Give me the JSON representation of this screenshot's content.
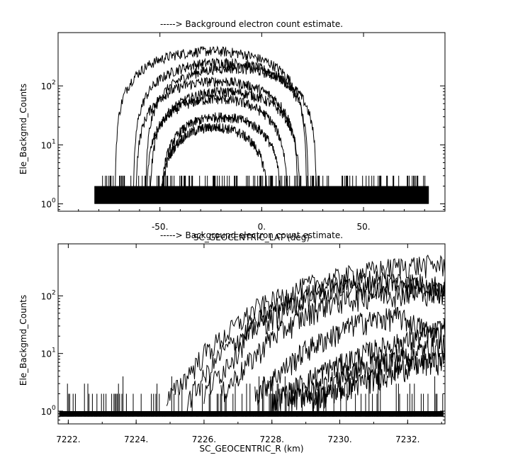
{
  "chart_data": [
    {
      "type": "line",
      "title": "-----> Background electron count estimate.",
      "xlabel": "SC_GEOCENTRIC_LAT (deg)",
      "ylabel": "Ele_Backgmd_Counts",
      "y_scale": "log",
      "xlim": [
        -100,
        90
      ],
      "ylim": [
        0.75,
        800
      ],
      "x_ticks": [
        -50,
        0,
        50
      ],
      "x_tick_labels": [
        "-50.",
        "0.",
        "50."
      ],
      "y_ticks": [
        1,
        10,
        100
      ],
      "y_tick_labels": [
        "10",
        "10",
        "10"
      ],
      "y_tick_exponents": [
        "0",
        "1",
        "2"
      ],
      "grid": false,
      "noise_floor": {
        "x_range": [
          -82,
          82
        ],
        "min_count": 1,
        "max_count": 3
      },
      "series": [
        {
          "center": -25,
          "half_width": 47,
          "peak": 390
        },
        {
          "center": -20,
          "half_width": 43,
          "peak": 250
        },
        {
          "center": -15,
          "half_width": 42,
          "peak": 200
        },
        {
          "center": -22,
          "half_width": 40,
          "peak": 120
        },
        {
          "center": -18,
          "half_width": 37,
          "peak": 80
        },
        {
          "center": -22,
          "half_width": 35,
          "peak": 60
        },
        {
          "center": -20,
          "half_width": 30,
          "peak": 30
        },
        {
          "center": -23,
          "half_width": 27,
          "peak": 20
        }
      ]
    },
    {
      "type": "line",
      "title": "-----> Background electron count estimate.",
      "xlabel": "SC_GEOCENTRIC_R (km)",
      "ylabel": "Ele_Backgmd_Counts",
      "y_scale": "log",
      "xlim": [
        7221.7,
        7233.1
      ],
      "ylim": [
        0.6,
        800
      ],
      "x_ticks": [
        7222,
        7224,
        7226,
        7228,
        7230,
        7232
      ],
      "x_tick_labels": [
        "7222.",
        "7224.",
        "7226.",
        "7228.",
        "7230.",
        "7232."
      ],
      "y_ticks": [
        1,
        10,
        100
      ],
      "y_tick_labels": [
        "10",
        "10",
        "10"
      ],
      "y_tick_exponents": [
        "0",
        "1",
        "2"
      ],
      "grid": false,
      "series": [
        {
          "points": [
            [
              7224.9,
              1.5
            ],
            [
              7226,
              10
            ],
            [
              7227.5,
              60
            ],
            [
              7229,
              150
            ],
            [
              7230.5,
              250
            ],
            [
              7232,
              350
            ],
            [
              7233.1,
              350
            ]
          ]
        },
        {
          "points": [
            [
              7225.5,
              1.5
            ],
            [
              7226.5,
              10
            ],
            [
              7228,
              60
            ],
            [
              7229.5,
              140
            ],
            [
              7231,
              200
            ],
            [
              7232.5,
              170
            ],
            [
              7233.1,
              150
            ]
          ]
        },
        {
          "points": [
            [
              7226,
              2
            ],
            [
              7227.5,
              30
            ],
            [
              7229,
              90
            ],
            [
              7230.5,
              150
            ],
            [
              7232,
              150
            ],
            [
              7233.1,
              120
            ]
          ]
        },
        {
          "points": [
            [
              7226.5,
              2
            ],
            [
              7228,
              20
            ],
            [
              7229.5,
              70
            ],
            [
              7231,
              110
            ],
            [
              7232.5,
              120
            ],
            [
              7233.1,
              130
            ]
          ]
        },
        {
          "points": [
            [
              7227.5,
              2
            ],
            [
              7229,
              12
            ],
            [
              7230.5,
              35
            ],
            [
              7231.7,
              45
            ],
            [
              7233,
              20
            ]
          ]
        },
        {
          "points": [
            [
              7228,
              1.5
            ],
            [
              7229.5,
              5
            ],
            [
              7231,
              12
            ],
            [
              7232.5,
              20
            ],
            [
              7233.1,
              30
            ]
          ]
        },
        {
          "points": [
            [
              7228.5,
              1.5
            ],
            [
              7230,
              4
            ],
            [
              7231.5,
              8
            ],
            [
              7232.5,
              12
            ],
            [
              7233.1,
              15
            ]
          ]
        },
        {
          "points": [
            [
              7229,
              1.5
            ],
            [
              7230.5,
              3
            ],
            [
              7232,
              6
            ],
            [
              7233.1,
              8
            ]
          ]
        }
      ]
    }
  ]
}
